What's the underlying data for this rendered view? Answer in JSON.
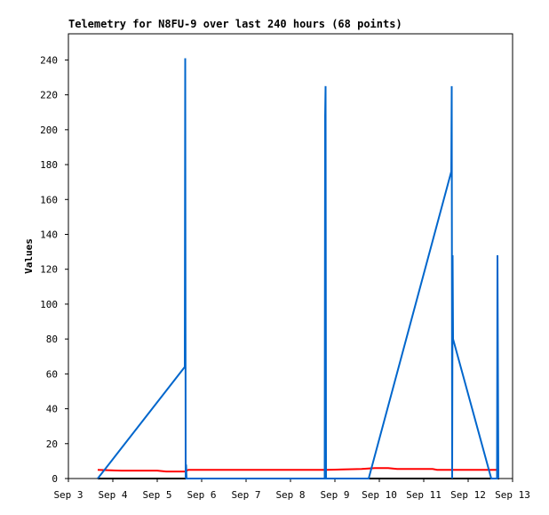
{
  "chart_data": {
    "type": "line",
    "title": "Telemetry for N8FU-9 over last 240 hours (68 points)",
    "y_label": "Values",
    "xlim": [
      3,
      13
    ],
    "xticks": [
      {
        "value": 3,
        "label": "Sep 3"
      },
      {
        "value": 4,
        "label": "Sep 4"
      },
      {
        "value": 5,
        "label": "Sep 5"
      },
      {
        "value": 6,
        "label": "Sep 6"
      },
      {
        "value": 7,
        "label": "Sep 7"
      },
      {
        "value": 8,
        "label": "Sep 8"
      },
      {
        "value": 9,
        "label": "Sep 9"
      },
      {
        "value": 10,
        "label": "Sep 10"
      },
      {
        "value": 11,
        "label": "Sep 11"
      },
      {
        "value": 12,
        "label": "Sep 12"
      },
      {
        "value": 13,
        "label": "Sep 13"
      }
    ],
    "ylim": [
      0,
      255
    ],
    "yticks": [
      0,
      20,
      40,
      60,
      80,
      100,
      120,
      140,
      160,
      180,
      200,
      220,
      240
    ],
    "series": [
      {
        "color": "#000000",
        "x": [
          3.66,
          12.7
        ],
        "values": [
          0,
          0
        ]
      },
      {
        "color": "#ff0000",
        "x": [
          3.66,
          4.2,
          5.0,
          5.2,
          5.62,
          5.7,
          7.0,
          8.8,
          9.6,
          9.9,
          10.2,
          10.4,
          11.2,
          11.3,
          12.7
        ],
        "values": [
          5,
          4.5,
          4.5,
          4,
          4,
          5,
          5,
          5,
          5.5,
          6,
          6,
          5.5,
          5.5,
          5,
          5
        ]
      },
      {
        "color": "#0066cc",
        "x": [
          3.66,
          5.62,
          5.63,
          5.64,
          5.65,
          5.66,
          8.77,
          8.78,
          8.79,
          8.8,
          9.76,
          11.62,
          11.63,
          11.64,
          11.65,
          11.66,
          12.52,
          12.65,
          12.66,
          12.67,
          12.68
        ],
        "values": [
          0,
          64,
          241,
          0,
          8,
          0,
          0,
          208,
          225,
          0,
          0,
          176,
          225,
          0,
          128,
          80,
          0,
          0,
          128,
          64,
          0
        ]
      }
    ]
  }
}
